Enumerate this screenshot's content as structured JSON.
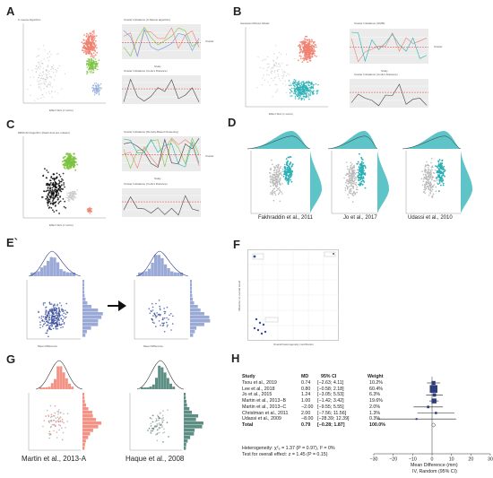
{
  "panels": {
    "A": {
      "label": "A",
      "scatter_title": "K-means Algorithm",
      "top_title": "Cluster Imbalance (K-Means algorithm)",
      "bottom_title": "Cluster Imbalance (Cook's Distance)",
      "legend_title": "Cluster",
      "xlabel": "Effect Size (z score)",
      "ylabel_top": "Study Percentage",
      "ylabel_bottom": "Cook's Distance",
      "study_label": "Study"
    },
    "B": {
      "label": "B",
      "scatter_title": "Gaussian Mixture Model",
      "top_title": "Cluster Imbalance (GMM)",
      "bottom_title": "Cluster Imbalance (Cook's Distance)",
      "legend_title": "Cluster",
      "xlabel": "Effect Size (z score)",
      "study_label": "Study"
    },
    "C": {
      "label": "C",
      "scatter_title": "DBSCAN Algorithm (black dots are outliers)",
      "top_title": "Cluster Imbalance (Density-Based Clustering)",
      "bottom_title": "Cluster Imbalance (Cook's Distance)",
      "legend_title": "Cluster",
      "xlabel": "Effect Size (z score)",
      "study_label": "Study"
    },
    "D": {
      "label": "D",
      "captions": [
        "Fakhraddin et al., 2011",
        "Jo et al., 2017",
        "Udassi et al., 2010"
      ]
    },
    "E": {
      "label": "E`",
      "xlabel": "Mean Difference"
    },
    "F": {
      "label": "F",
      "xlabel": "Overall heterogeneity contribution",
      "ylabel": "Influence on overall result"
    },
    "G": {
      "label": "G",
      "captions": [
        "Martin et al., 2013-A",
        "Haque et al., 2008"
      ]
    },
    "H": {
      "label": "H",
      "headers": {
        "study": "Study",
        "md": "MD",
        "ci": "95% CI",
        "weight": "Weight"
      },
      "rows": [
        {
          "study": "Tsou et al., 2019",
          "md": "0.74",
          "ci": "[−2.63; 4.11]",
          "weight": "10.2%",
          "lo": -2.63,
          "hi": 4.11,
          "est": 0.74
        },
        {
          "study": "Lee et al., 2018",
          "md": "0.80",
          "ci": "[−0.58; 2.18]",
          "weight": "60.4%",
          "lo": -0.58,
          "hi": 2.18,
          "est": 0.8
        },
        {
          "study": "Jo et al., 2015",
          "md": "1.24",
          "ci": "[−3.05; 5.53]",
          "weight": "6.3%",
          "lo": -3.05,
          "hi": 5.53,
          "est": 1.24
        },
        {
          "study": "Martin et al., 2013−B",
          "md": "1.00",
          "ci": "[−1.42; 3.42]",
          "weight": "19.6%",
          "lo": -1.42,
          "hi": 3.42,
          "est": 1.0
        },
        {
          "study": "Martin et al., 2013−C",
          "md": "−2.00",
          "ci": "[−9.55; 5.55]",
          "weight": "2.0%",
          "lo": -9.55,
          "hi": 5.55,
          "est": -2.0
        },
        {
          "study": "Christman et al., 2011",
          "md": "2.00",
          "ci": "[−7.56; 11.56]",
          "weight": "1.3%",
          "lo": -7.56,
          "hi": 11.56,
          "est": 2.0
        },
        {
          "study": "Udassi et al., 2009",
          "md": "−8.00",
          "ci": "[−28.39; 12.39]",
          "weight": "0.3%",
          "lo": -28.39,
          "hi": 12.39,
          "est": -8.0
        }
      ],
      "total": {
        "study": "Total",
        "md": "0.79",
        "ci": "[−0.28; 1.87]",
        "weight": "100.0%",
        "lo": -0.28,
        "hi": 1.87,
        "est": 0.79
      },
      "heterogeneity": "Heterogeneity: χ²₆ = 1.37 (P = 0.97), I² = 0%",
      "overall_test": "Test for overall effect: z = 1.45 (P = 0.15)",
      "axis_ticks": [
        "−30",
        "−20",
        "−10",
        "0",
        "10",
        "20",
        "30"
      ],
      "axis_label_1": "Mean Difference (mm)",
      "axis_label_2": "IV, Random (95% CI)"
    }
  },
  "chart_data": {
    "type": "table",
    "xlabel": "Mean Difference (mm)",
    "xlim": [
      -30,
      30
    ],
    "columns": [
      "Study",
      "MD",
      "95% CI",
      "Weight"
    ],
    "rows": [
      [
        "Tsou et al., 2019",
        0.74,
        [
          -2.63,
          4.11
        ],
        10.2
      ],
      [
        "Lee et al., 2018",
        0.8,
        [
          -0.58,
          2.18
        ],
        60.4
      ],
      [
        "Jo et al., 2015",
        1.24,
        [
          -3.05,
          5.53
        ],
        6.3
      ],
      [
        "Martin et al., 2013−B",
        1.0,
        [
          -1.42,
          3.42
        ],
        19.6
      ],
      [
        "Martin et al., 2013−C",
        -2.0,
        [
          -9.55,
          5.55
        ],
        2.0
      ],
      [
        "Christman et al., 2011",
        2.0,
        [
          -7.56,
          11.56
        ],
        1.3
      ],
      [
        "Udassi et al., 2009",
        -8.0,
        [
          -28.39,
          12.39
        ],
        0.3
      ],
      [
        "Total",
        0.79,
        [
          -0.28,
          1.87
        ],
        100.0
      ]
    ]
  },
  "colors": {
    "salmon": "#f08070",
    "teal": "#2ab0b5",
    "green": "#7cc242",
    "navy": "#3a4f9e",
    "slate": "#8a9ad0",
    "grey": "#9a9a9a",
    "panel_bg": "#ebebeb"
  }
}
